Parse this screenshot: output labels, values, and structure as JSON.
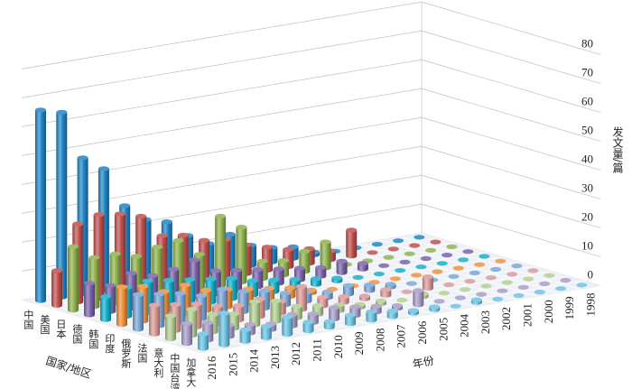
{
  "chart_data": {
    "type": "bar3d",
    "title": "",
    "zlabel": "发文量/篇",
    "xlabel": "国家/地区",
    "ylabel": "年份",
    "zlim": [
      0,
      80
    ],
    "zticks": [
      "0",
      "10",
      "20",
      "30",
      "40",
      "50",
      "60",
      "70",
      "80"
    ],
    "grid": true,
    "countries": [
      "中国",
      "美国",
      "日本",
      "德国",
      "韩国",
      "印度",
      "俄罗斯",
      "法国",
      "意大利",
      "中国台湾",
      "加拿大"
    ],
    "years": [
      "2016",
      "2015",
      "2014",
      "2013",
      "2012",
      "2011",
      "2010",
      "2009",
      "2008",
      "2007",
      "2006",
      "2005",
      "2004",
      "2003",
      "2002",
      "2001",
      "2000",
      "1999",
      "1998"
    ],
    "colors": [
      "#1f86c8",
      "#c0504d",
      "#8fb24c",
      "#7b63a8",
      "#14b0cc",
      "#f0913a",
      "#7aa6d8",
      "#db9a98",
      "#b4cf92",
      "#a79cc6",
      "#6cc3e4"
    ],
    "series": [
      {
        "name": "中国",
        "values": [
          66,
          64,
          47,
          42,
          28,
          22,
          20,
          14,
          10,
          12,
          7,
          5,
          4,
          1,
          0,
          0,
          0,
          0,
          0
        ]
      },
      {
        "name": "美国",
        "values": [
          12,
          27,
          29,
          28,
          26,
          18,
          17,
          14,
          13,
          10,
          8,
          6,
          5,
          3,
          9,
          0,
          0,
          0,
          0
        ]
      },
      {
        "name": "日本",
        "values": [
          22,
          17,
          17,
          15,
          17,
          18,
          12,
          24,
          19,
          6,
          5,
          7,
          9,
          0,
          0,
          0,
          0,
          0,
          0
        ]
      },
      {
        "name": "德国",
        "values": [
          11,
          9,
          12,
          10,
          11,
          13,
          8,
          7,
          6,
          5,
          4,
          3,
          4,
          2,
          0,
          0,
          0,
          0,
          0
        ]
      },
      {
        "name": "韩国",
        "values": [
          8,
          10,
          11,
          10,
          9,
          8,
          7,
          5,
          4,
          3,
          2,
          1,
          0,
          0,
          0,
          0,
          0,
          0,
          0
        ]
      },
      {
        "name": "印度",
        "values": [
          13,
          12,
          9,
          10,
          7,
          6,
          5,
          4,
          3,
          1,
          0,
          0,
          0,
          0,
          0,
          0,
          0,
          0,
          0
        ]
      },
      {
        "name": "俄罗斯",
        "values": [
          12,
          11,
          10,
          8,
          9,
          7,
          6,
          4,
          3,
          2,
          3,
          2,
          1,
          0,
          0,
          0,
          0,
          0,
          0
        ]
      },
      {
        "name": "法国",
        "values": [
          10,
          9,
          8,
          6,
          5,
          6,
          4,
          8,
          3,
          2,
          1,
          2,
          0,
          4,
          0,
          0,
          0,
          0,
          0
        ]
      },
      {
        "name": "意大利",
        "values": [
          8,
          9,
          6,
          5,
          8,
          7,
          4,
          3,
          2,
          1,
          1,
          0,
          1,
          0,
          0,
          0,
          0,
          0,
          0
        ]
      },
      {
        "name": "中国台湾",
        "values": [
          7,
          6,
          4,
          3,
          2,
          4,
          3,
          4,
          3,
          2,
          1,
          5,
          0,
          0,
          0,
          0,
          0,
          0,
          0
        ]
      },
      {
        "name": "加拿大",
        "values": [
          5,
          11,
          4,
          4,
          6,
          3,
          2,
          3,
          3,
          2,
          1,
          1,
          0,
          1,
          0,
          0,
          0,
          0,
          0
        ]
      }
    ]
  }
}
